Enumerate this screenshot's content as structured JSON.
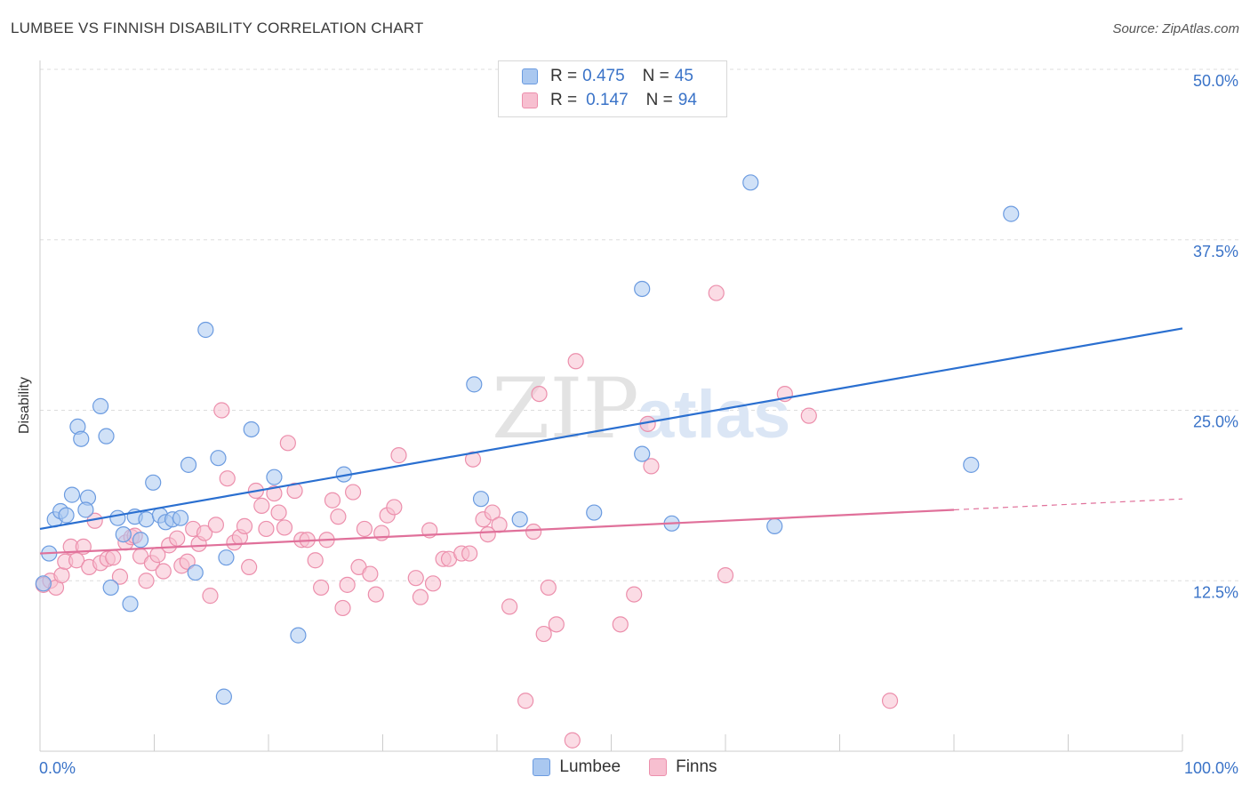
{
  "header": {
    "title": "LUMBEE VS FINNISH DISABILITY CORRELATION CHART",
    "source": "Source: ZipAtlas.com"
  },
  "watermark": {
    "zip": "ZIP",
    "atlas": "atlas"
  },
  "legend": {
    "rows": [
      {
        "r_label": "R =",
        "r_value": "0.475",
        "n_label": "N =",
        "n_value": "45"
      },
      {
        "r_label": "R =",
        "r_value": "0.147",
        "n_label": "N =",
        "n_value": "94"
      }
    ]
  },
  "bottom_legend": {
    "items": [
      "Lumbee",
      "Finns"
    ]
  },
  "colors": {
    "lumbee_fill": "#aac8f0",
    "lumbee_stroke": "#6b9be0",
    "lumbee_line": "#2a6fd0",
    "finns_fill": "#f7bfd0",
    "finns_stroke": "#ec8fac",
    "finns_line": "#e0709a",
    "tick_label": "#3a73c8",
    "grid": "#dddddd"
  },
  "chart_data": {
    "type": "scatter",
    "title": "LUMBEE VS FINNISH DISABILITY CORRELATION CHART",
    "ylabel": "Disability",
    "xlabel": "",
    "xlim": [
      0,
      100
    ],
    "ylim": [
      0,
      50
    ],
    "x_tick_labels": [
      "0.0%",
      "100.0%"
    ],
    "y_ticks": [
      12.5,
      25.0,
      37.5,
      50.0
    ],
    "y_tick_labels": [
      "12.5%",
      "25.0%",
      "37.5%",
      "50.0%"
    ],
    "grid": "horizontal dashed",
    "series": [
      {
        "name": "Lumbee",
        "r": 0.475,
        "n": 45,
        "trend": {
          "x": [
            0,
            100
          ],
          "y": [
            16.3,
            31.0
          ]
        },
        "points": [
          [
            0.3,
            12.3
          ],
          [
            0.8,
            14.5
          ],
          [
            1.3,
            17.0
          ],
          [
            1.8,
            17.6
          ],
          [
            2.3,
            17.3
          ],
          [
            2.8,
            18.8
          ],
          [
            3.3,
            23.8
          ],
          [
            3.6,
            22.9
          ],
          [
            4.2,
            18.6
          ],
          [
            4.0,
            17.7
          ],
          [
            5.3,
            25.3
          ],
          [
            5.8,
            23.1
          ],
          [
            6.2,
            12.0
          ],
          [
            6.8,
            17.1
          ],
          [
            7.3,
            15.9
          ],
          [
            7.9,
            10.8
          ],
          [
            8.3,
            17.2
          ],
          [
            8.8,
            15.5
          ],
          [
            9.3,
            17.0
          ],
          [
            9.9,
            19.7
          ],
          [
            10.5,
            17.3
          ],
          [
            11.0,
            16.8
          ],
          [
            11.6,
            17.0
          ],
          [
            12.3,
            17.1
          ],
          [
            13.0,
            21.0
          ],
          [
            13.6,
            13.1
          ],
          [
            14.5,
            30.9
          ],
          [
            15.6,
            21.5
          ],
          [
            16.3,
            14.2
          ],
          [
            16.1,
            4.0
          ],
          [
            18.5,
            23.6
          ],
          [
            20.5,
            20.1
          ],
          [
            22.6,
            8.5
          ],
          [
            26.6,
            20.3
          ],
          [
            38.0,
            26.9
          ],
          [
            38.6,
            18.5
          ],
          [
            42.0,
            17.0
          ],
          [
            48.5,
            17.5
          ],
          [
            52.7,
            33.9
          ],
          [
            52.7,
            21.8
          ],
          [
            55.3,
            16.7
          ],
          [
            62.2,
            41.7
          ],
          [
            64.3,
            16.5
          ],
          [
            81.5,
            21.0
          ],
          [
            85.0,
            39.4
          ]
        ]
      },
      {
        "name": "Finns",
        "r": 0.147,
        "n": 94,
        "trend": {
          "x": [
            0,
            80,
            100
          ],
          "y": [
            14.5,
            17.7,
            18.5
          ],
          "dashed_from": 80
        },
        "points": [
          [
            0.3,
            12.2
          ],
          [
            0.9,
            12.5
          ],
          [
            1.4,
            12.0
          ],
          [
            1.9,
            12.9
          ],
          [
            2.2,
            13.9
          ],
          [
            2.7,
            15.0
          ],
          [
            3.2,
            14.0
          ],
          [
            3.8,
            15.0
          ],
          [
            4.3,
            13.5
          ],
          [
            4.8,
            16.9
          ],
          [
            5.3,
            13.8
          ],
          [
            5.9,
            14.1
          ],
          [
            6.4,
            14.2
          ],
          [
            7.0,
            12.8
          ],
          [
            7.5,
            15.3
          ],
          [
            8.0,
            15.7
          ],
          [
            8.3,
            15.8
          ],
          [
            8.8,
            14.3
          ],
          [
            9.3,
            12.5
          ],
          [
            9.8,
            13.8
          ],
          [
            10.3,
            14.4
          ],
          [
            10.8,
            13.2
          ],
          [
            11.3,
            15.1
          ],
          [
            12.0,
            15.6
          ],
          [
            12.4,
            13.6
          ],
          [
            12.9,
            13.9
          ],
          [
            13.4,
            16.3
          ],
          [
            13.9,
            15.2
          ],
          [
            14.4,
            16.0
          ],
          [
            14.9,
            11.4
          ],
          [
            15.4,
            16.6
          ],
          [
            15.9,
            25.0
          ],
          [
            16.4,
            20.0
          ],
          [
            17.0,
            15.3
          ],
          [
            17.5,
            15.7
          ],
          [
            17.9,
            16.5
          ],
          [
            18.3,
            13.5
          ],
          [
            18.9,
            19.1
          ],
          [
            19.4,
            18.0
          ],
          [
            19.8,
            16.3
          ],
          [
            20.5,
            18.9
          ],
          [
            20.9,
            17.5
          ],
          [
            21.4,
            16.4
          ],
          [
            21.7,
            22.6
          ],
          [
            22.3,
            19.1
          ],
          [
            22.9,
            15.5
          ],
          [
            23.4,
            15.5
          ],
          [
            24.1,
            14.0
          ],
          [
            24.6,
            12.0
          ],
          [
            25.1,
            15.5
          ],
          [
            25.6,
            18.4
          ],
          [
            26.1,
            17.2
          ],
          [
            26.5,
            10.5
          ],
          [
            26.9,
            12.2
          ],
          [
            27.4,
            19.0
          ],
          [
            27.9,
            13.5
          ],
          [
            28.4,
            16.3
          ],
          [
            28.9,
            13.0
          ],
          [
            29.4,
            11.5
          ],
          [
            29.9,
            16.0
          ],
          [
            30.4,
            17.3
          ],
          [
            31.0,
            17.9
          ],
          [
            31.4,
            21.7
          ],
          [
            32.9,
            12.7
          ],
          [
            33.3,
            11.3
          ],
          [
            34.1,
            16.2
          ],
          [
            34.4,
            12.3
          ],
          [
            35.3,
            14.1
          ],
          [
            35.8,
            14.1
          ],
          [
            36.9,
            14.5
          ],
          [
            37.6,
            14.5
          ],
          [
            37.9,
            21.4
          ],
          [
            38.8,
            17.0
          ],
          [
            39.2,
            15.9
          ],
          [
            39.6,
            17.5
          ],
          [
            40.2,
            16.6
          ],
          [
            41.1,
            10.6
          ],
          [
            42.5,
            3.7
          ],
          [
            43.2,
            16.1
          ],
          [
            43.7,
            26.2
          ],
          [
            44.1,
            8.6
          ],
          [
            44.5,
            12.0
          ],
          [
            45.2,
            9.3
          ],
          [
            46.6,
            0.8
          ],
          [
            46.9,
            28.6
          ],
          [
            50.8,
            9.3
          ],
          [
            52.0,
            11.5
          ],
          [
            53.2,
            24.0
          ],
          [
            53.5,
            20.9
          ],
          [
            59.2,
            33.6
          ],
          [
            60.0,
            12.9
          ],
          [
            65.2,
            26.2
          ],
          [
            67.3,
            24.6
          ],
          [
            74.4,
            3.7
          ]
        ]
      }
    ]
  }
}
